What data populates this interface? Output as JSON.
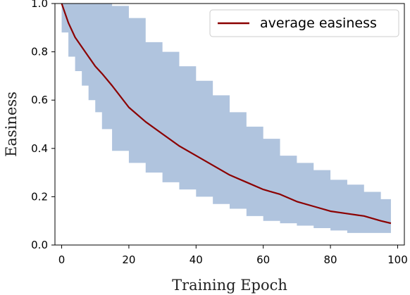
{
  "chart_data": {
    "type": "line",
    "title": "",
    "xlabel": "Training Epoch",
    "ylabel": "Easiness",
    "xlim": [
      -2,
      102
    ],
    "ylim": [
      0.0,
      1.0
    ],
    "xticks": [
      0,
      20,
      40,
      60,
      80,
      100
    ],
    "yticks": [
      0.0,
      0.2,
      0.4,
      0.6,
      0.8,
      1.0
    ],
    "xtick_labels": [
      "0",
      "20",
      "40",
      "60",
      "80",
      "100"
    ],
    "ytick_labels": [
      "0.0",
      "0.2",
      "0.4",
      "0.6",
      "0.8",
      "1.0"
    ],
    "grid": false,
    "legend_position": "top-right",
    "colors": {
      "line": "#8b0000",
      "band": "#b0c4de"
    },
    "series": [
      {
        "name": "average easiness",
        "x": [
          0,
          2,
          4,
          6,
          8,
          10,
          12,
          15,
          20,
          25,
          30,
          35,
          40,
          45,
          50,
          55,
          60,
          65,
          70,
          75,
          80,
          85,
          90,
          95,
          98
        ],
        "values": [
          1.0,
          0.92,
          0.86,
          0.82,
          0.78,
          0.74,
          0.71,
          0.66,
          0.57,
          0.51,
          0.46,
          0.41,
          0.37,
          0.33,
          0.29,
          0.26,
          0.23,
          0.21,
          0.18,
          0.16,
          0.14,
          0.13,
          0.12,
          0.1,
          0.09
        ]
      }
    ],
    "band": {
      "x": [
        0,
        2,
        4,
        6,
        8,
        10,
        12,
        15,
        20,
        25,
        30,
        35,
        40,
        45,
        50,
        55,
        60,
        65,
        70,
        75,
        80,
        85,
        90,
        95,
        98
      ],
      "lower": [
        1.0,
        0.88,
        0.78,
        0.72,
        0.66,
        0.6,
        0.55,
        0.48,
        0.39,
        0.34,
        0.3,
        0.26,
        0.23,
        0.2,
        0.17,
        0.15,
        0.12,
        0.1,
        0.09,
        0.08,
        0.07,
        0.06,
        0.05,
        0.05,
        0.05
      ],
      "upper": [
        1.0,
        1.0,
        1.0,
        1.0,
        1.0,
        1.0,
        1.0,
        0.99,
        0.94,
        0.84,
        0.8,
        0.74,
        0.68,
        0.62,
        0.55,
        0.49,
        0.44,
        0.37,
        0.34,
        0.31,
        0.27,
        0.25,
        0.22,
        0.19,
        0.18
      ]
    }
  }
}
